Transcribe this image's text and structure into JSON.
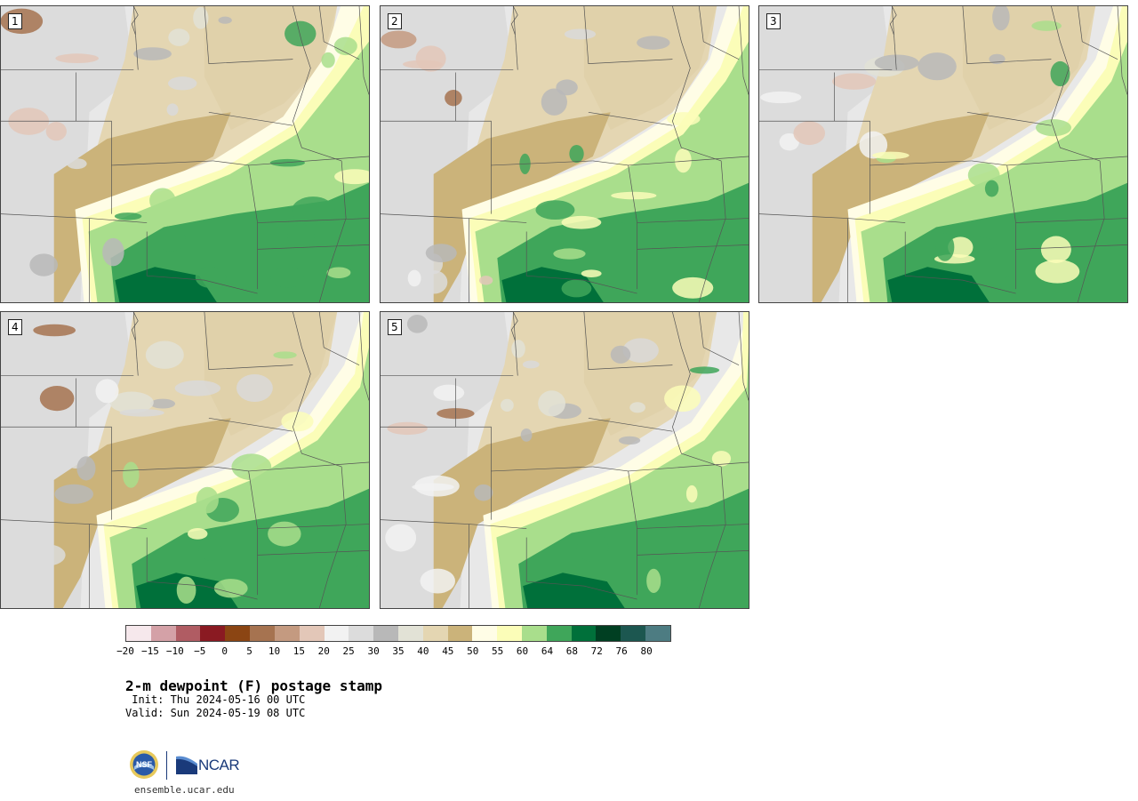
{
  "panels": [
    {
      "label": "1",
      "variant": 1
    },
    {
      "label": "2",
      "variant": 2
    },
    {
      "label": "3",
      "variant": 3
    },
    {
      "label": "4",
      "variant": 4
    },
    {
      "label": "5",
      "variant": 5
    }
  ],
  "colorbar": {
    "colors": [
      "#f6e8ec",
      "#d4a1a7",
      "#b05c63",
      "#8a1a22",
      "#8b4513",
      "#a67350",
      "#c49a80",
      "#e3c7b8",
      "#f2f2f2",
      "#dcdcdc",
      "#b8b8b8",
      "#e2e2d6",
      "#e4d6b2",
      "#cbb37a",
      "#fffde6",
      "#fbfdb8",
      "#a9de8c",
      "#3fa65a",
      "#00703a",
      "#003f22",
      "#1c5750",
      "#4d7c82"
    ],
    "tick_labels": [
      "−20",
      "−15",
      "−10",
      "−5",
      "0",
      "5",
      "10",
      "15",
      "20",
      "25",
      "30",
      "35",
      "40",
      "45",
      "50",
      "55",
      "60",
      "64",
      "68",
      "72",
      "76",
      "80"
    ]
  },
  "title": "2-m dewpoint (F) postage stamp",
  "init": " Init: Thu 2024-05-16 00 UTC",
  "valid": "Valid: Sun 2024-05-19 08 UTC",
  "logos": {
    "nsf": "NSF",
    "ncar": "NCAR"
  },
  "site": "ensemble.ucar.edu"
}
